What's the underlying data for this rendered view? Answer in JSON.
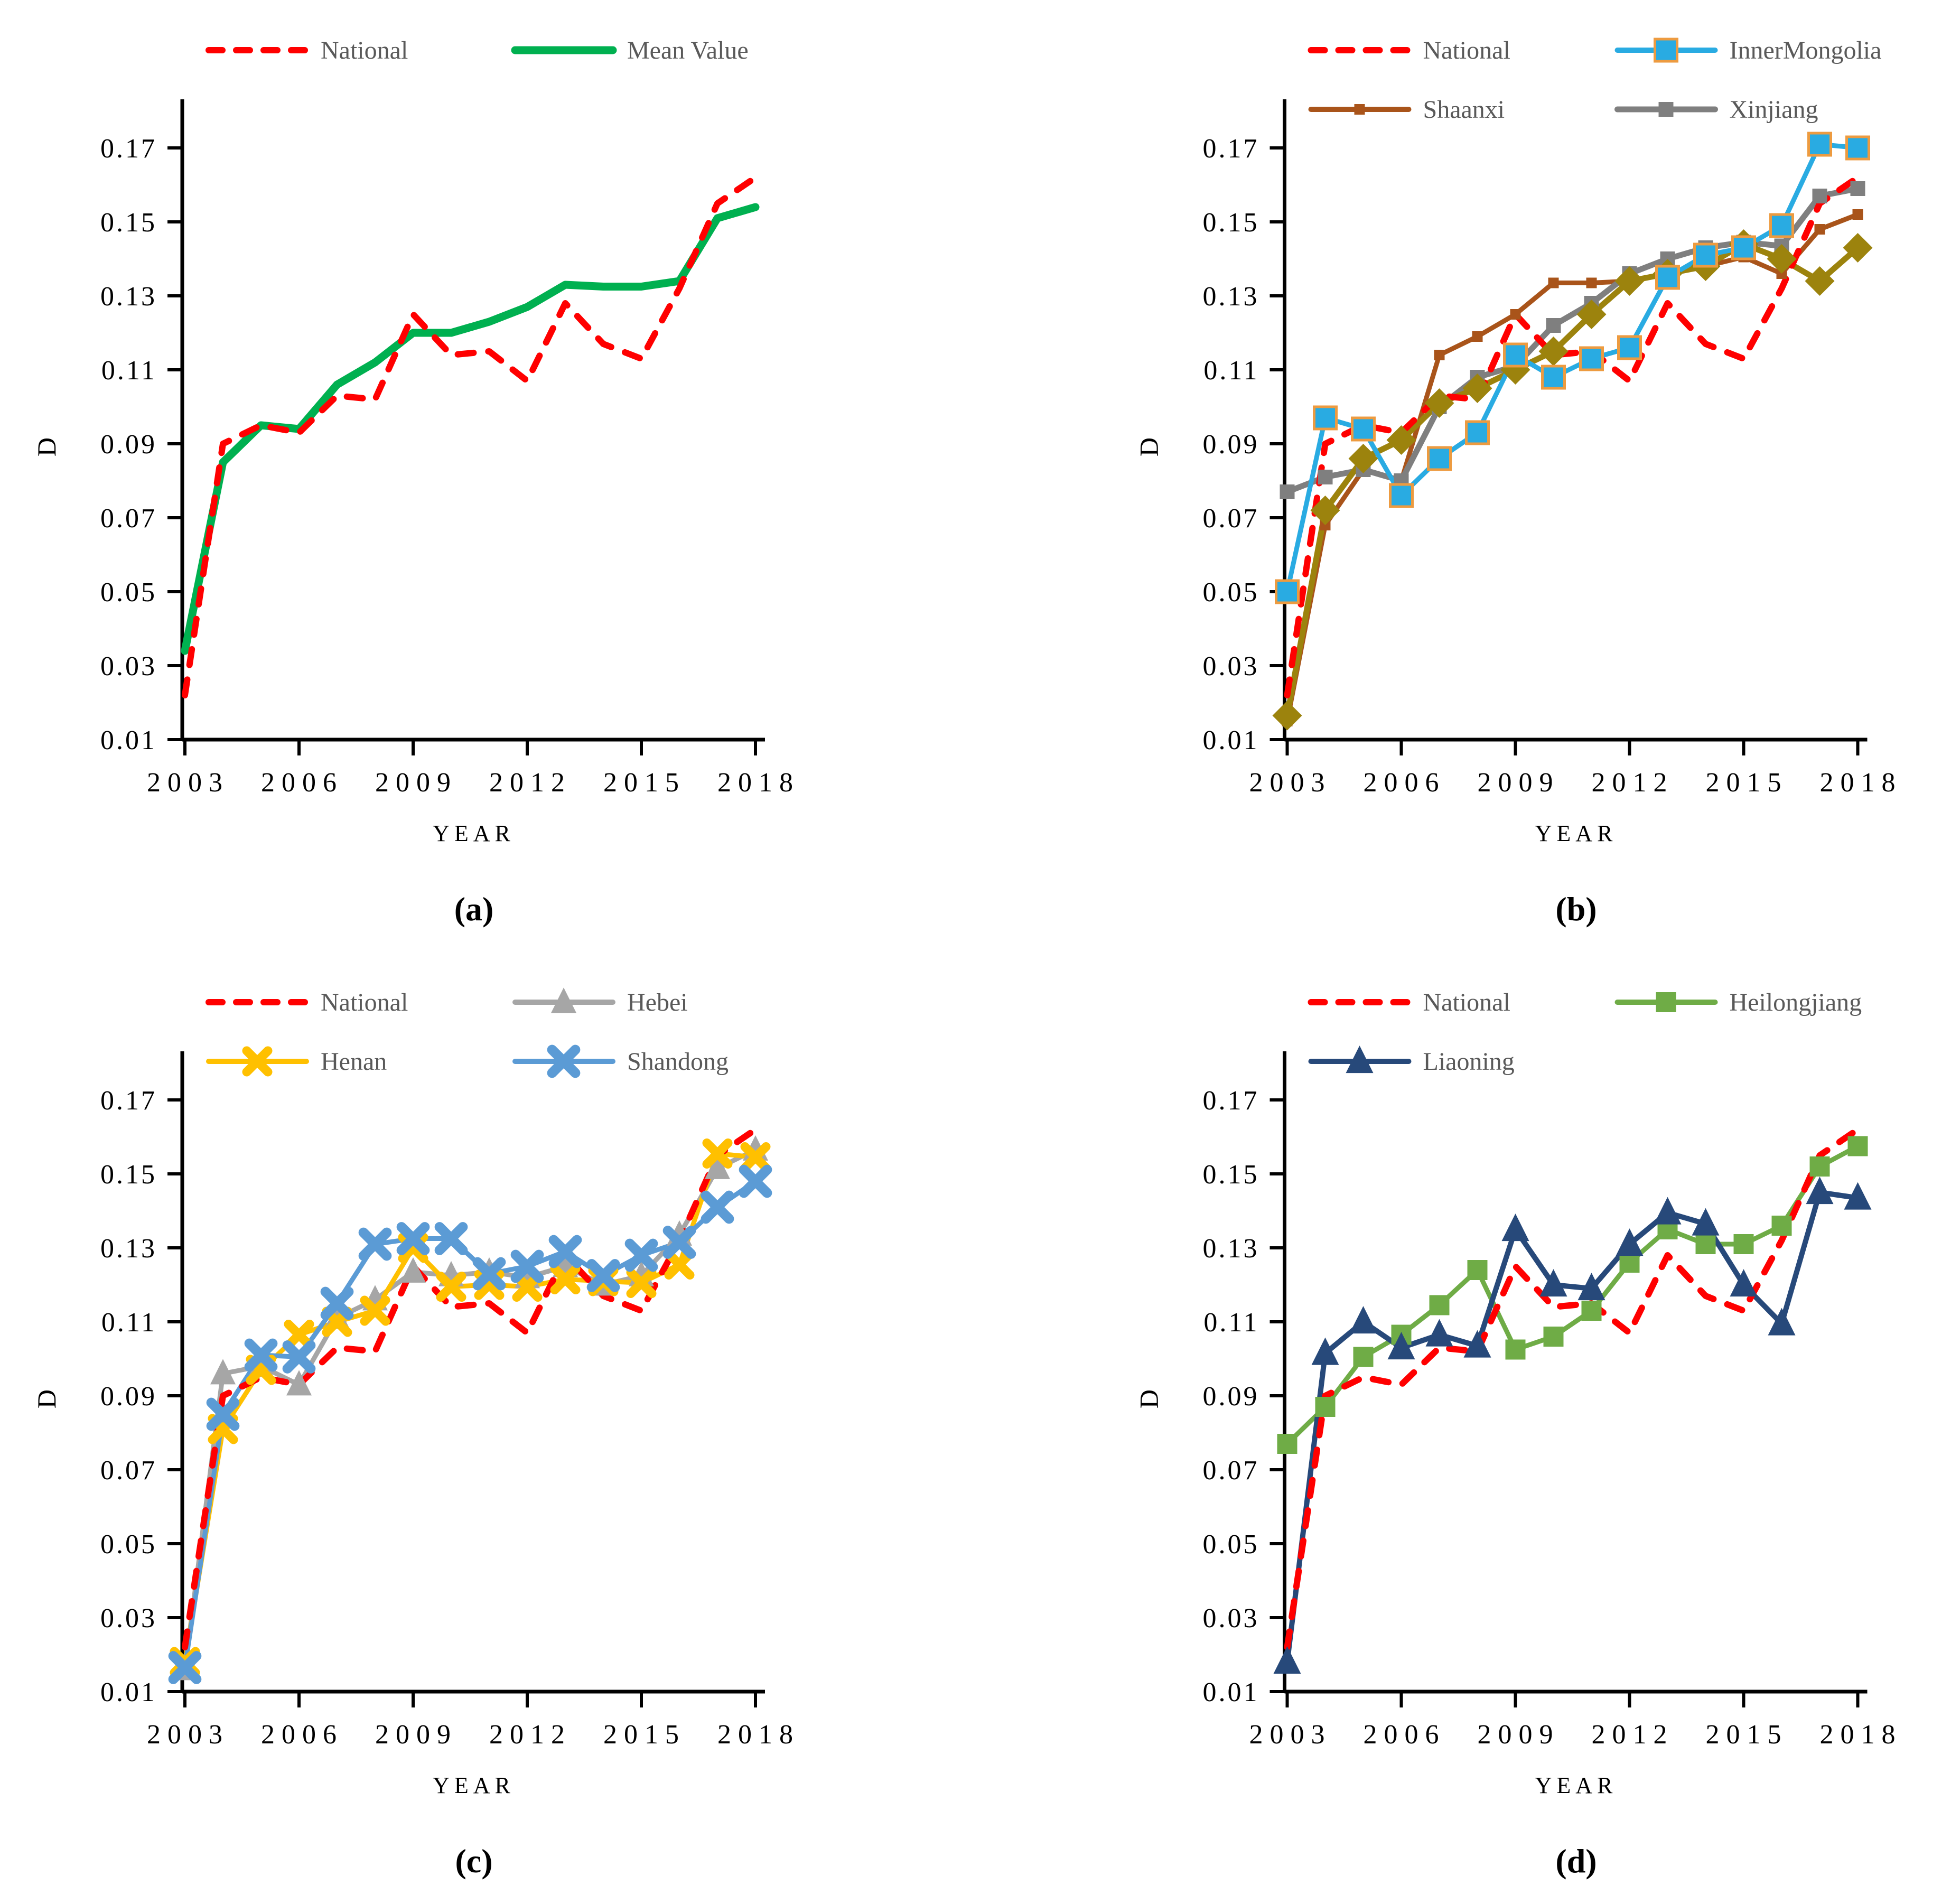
{
  "figure": {
    "background": "#FFFFFF",
    "axis_color": "#000000",
    "legend_text_color": "#595959"
  },
  "chart_data": [
    {
      "id": "a",
      "type": "line",
      "caption": "(a)",
      "xlabel": "YEAR",
      "ylabel": "D",
      "x": [
        2003,
        2004,
        2005,
        2006,
        2007,
        2008,
        2009,
        2010,
        2011,
        2012,
        2013,
        2014,
        2015,
        2016,
        2017,
        2018
      ],
      "x_ticks": [
        2003,
        2006,
        2009,
        2012,
        2015,
        2018
      ],
      "y_ticks": [
        0.01,
        0.03,
        0.05,
        0.07,
        0.09,
        0.11,
        0.13,
        0.15,
        0.17
      ],
      "ylim": [
        0.01,
        0.17
      ],
      "grid": false,
      "legend_position": "top",
      "offset_x": 0,
      "legend": [
        "National",
        "Mean Value"
      ],
      "series": [
        {
          "name": "Mean Value",
          "color": "#00B050",
          "line": "solid",
          "width": 15,
          "marker": "none",
          "values": [
            0.034,
            0.085,
            0.095,
            0.094,
            0.106,
            0.112,
            0.12,
            0.12,
            0.123,
            0.127,
            0.133,
            0.1325,
            0.1325,
            0.134,
            0.151,
            0.154
          ]
        },
        {
          "name": "National",
          "color": "#FF0000",
          "line": "dashed",
          "width": 12,
          "marker": "none",
          "values": [
            0.022,
            0.09,
            0.095,
            0.093,
            0.103,
            0.102,
            0.125,
            0.114,
            0.115,
            0.107,
            0.128,
            0.117,
            0.113,
            0.132,
            0.155,
            0.162
          ]
        }
      ]
    },
    {
      "id": "b",
      "type": "line",
      "caption": "(b)",
      "xlabel": "YEAR",
      "ylabel": "D",
      "x": [
        2003,
        2004,
        2005,
        2006,
        2007,
        2008,
        2009,
        2010,
        2011,
        2012,
        2013,
        2014,
        2015,
        2016,
        2017,
        2018
      ],
      "x_ticks": [
        2003,
        2006,
        2009,
        2012,
        2015,
        2018
      ],
      "y_ticks": [
        0.01,
        0.03,
        0.05,
        0.07,
        0.09,
        0.11,
        0.13,
        0.15,
        0.17
      ],
      "ylim": [
        0.01,
        0.17
      ],
      "grid": false,
      "legend_position": "top",
      "offset_x": 240,
      "legend": [
        "National",
        "InnerMongolia",
        "Shaanxi",
        "Xinjiang"
      ],
      "series": [
        {
          "name": "Shaanxi",
          "color": "#A9541A",
          "line": "solid",
          "width": 9,
          "marker": "square",
          "marker_size": 20,
          "values": [
            0.015,
            0.068,
            0.083,
            0.08,
            0.114,
            0.119,
            0.125,
            0.1335,
            0.1335,
            0.134,
            0.136,
            0.138,
            0.1405,
            0.136,
            0.148,
            0.152
          ]
        },
        {
          "name": "Xinjiang",
          "color": "#7F7F7F",
          "line": "solid",
          "width": 11,
          "marker": "square",
          "marker_size": 28,
          "values": [
            0.077,
            0.081,
            0.083,
            0.08,
            0.1,
            0.108,
            0.111,
            0.122,
            0.128,
            0.136,
            0.14,
            0.143,
            0.1445,
            0.1435,
            0.157,
            0.159
          ]
        },
        {
          "name": "",
          "in_legend": false,
          "color": "#9C830D",
          "line": "solid",
          "width": 11,
          "marker": "diamond",
          "marker_size": 28,
          "values": [
            0.0165,
            0.072,
            0.086,
            0.091,
            0.101,
            0.105,
            0.11,
            0.115,
            0.125,
            0.134,
            0.136,
            0.138,
            0.144,
            0.14,
            0.134,
            0.143
          ]
        },
        {
          "name": "InnerMongolia",
          "color": "#29ABE2",
          "line": "solid",
          "width": 9,
          "marker": "square",
          "marker_size": 42,
          "marker_stroke": "#ED9B40",
          "values": [
            0.05,
            0.097,
            0.094,
            0.076,
            0.086,
            0.093,
            0.114,
            0.108,
            0.113,
            0.116,
            0.135,
            0.141,
            0.143,
            0.149,
            0.171,
            0.17
          ]
        },
        {
          "name": "National",
          "color": "#FF0000",
          "line": "dashed",
          "width": 12,
          "marker": "none",
          "values": [
            0.022,
            0.09,
            0.095,
            0.093,
            0.103,
            0.102,
            0.125,
            0.114,
            0.115,
            0.107,
            0.128,
            0.117,
            0.113,
            0.132,
            0.155,
            0.162
          ]
        }
      ]
    },
    {
      "id": "c",
      "type": "line",
      "caption": "(c)",
      "xlabel": "YEAR",
      "ylabel": "D",
      "x": [
        2003,
        2004,
        2005,
        2006,
        2007,
        2008,
        2009,
        2010,
        2011,
        2012,
        2013,
        2014,
        2015,
        2016,
        2017,
        2018
      ],
      "x_ticks": [
        2003,
        2006,
        2009,
        2012,
        2015,
        2018
      ],
      "y_ticks": [
        0.01,
        0.03,
        0.05,
        0.07,
        0.09,
        0.11,
        0.13,
        0.15,
        0.17
      ],
      "ylim": [
        0.01,
        0.17
      ],
      "grid": false,
      "legend_position": "top",
      "offset_x": 0,
      "legend": [
        "National",
        "Hebei",
        "Henan",
        "Shandong"
      ],
      "series": [
        {
          "name": "Hebei",
          "color": "#A6A6A6",
          "line": "solid",
          "width": 9,
          "marker": "triangle",
          "marker_size": 24,
          "values": [
            0.016,
            0.096,
            0.098,
            0.093,
            0.111,
            0.116,
            0.1235,
            0.1225,
            0.1235,
            0.122,
            0.125,
            0.12,
            0.1225,
            0.1335,
            0.1515,
            0.1565
          ]
        },
        {
          "name": "Henan",
          "color": "#FFC000",
          "line": "solid",
          "width": 9,
          "marker": "x",
          "marker_size": 20,
          "values": [
            0.018,
            0.081,
            0.097,
            0.1065,
            0.11,
            0.113,
            0.13,
            0.1195,
            0.12,
            0.1195,
            0.1215,
            0.121,
            0.1205,
            0.1255,
            0.1555,
            0.1545
          ]
        },
        {
          "name": "Shandong",
          "color": "#5B9BD5",
          "line": "solid",
          "width": 9,
          "marker": "x",
          "marker_size": 22,
          "values": [
            0.0165,
            0.085,
            0.101,
            0.1005,
            0.115,
            0.131,
            0.1325,
            0.1325,
            0.123,
            0.125,
            0.129,
            0.1225,
            0.128,
            0.1315,
            0.141,
            0.148
          ]
        },
        {
          "name": "National",
          "color": "#FF0000",
          "line": "dashed",
          "width": 12,
          "marker": "none",
          "values": [
            0.022,
            0.09,
            0.095,
            0.093,
            0.103,
            0.102,
            0.125,
            0.114,
            0.115,
            0.107,
            0.128,
            0.117,
            0.113,
            0.132,
            0.155,
            0.162
          ]
        }
      ]
    },
    {
      "id": "d",
      "type": "line",
      "caption": "(d)",
      "xlabel": "YEAR",
      "ylabel": "D",
      "x": [
        2003,
        2004,
        2005,
        2006,
        2007,
        2008,
        2009,
        2010,
        2011,
        2012,
        2013,
        2014,
        2015,
        2016,
        2017,
        2018
      ],
      "x_ticks": [
        2003,
        2006,
        2009,
        2012,
        2015,
        2018
      ],
      "y_ticks": [
        0.01,
        0.03,
        0.05,
        0.07,
        0.09,
        0.11,
        0.13,
        0.15,
        0.17
      ],
      "ylim": [
        0.01,
        0.17
      ],
      "grid": false,
      "legend_position": "top",
      "offset_x": 240,
      "legend": [
        "National",
        "Heilongjiang",
        "Liaoning"
      ],
      "series": [
        {
          "name": "Heilongjiang",
          "color": "#6FAC46",
          "line": "solid",
          "width": 9,
          "marker": "square",
          "marker_size": 38,
          "values": [
            0.077,
            0.087,
            0.1005,
            0.1065,
            0.1145,
            0.124,
            0.1025,
            0.106,
            0.113,
            0.126,
            0.135,
            0.131,
            0.131,
            0.136,
            0.152,
            0.1575
          ]
        },
        {
          "name": "Liaoning",
          "color": "#27497A",
          "line": "solid",
          "width": 10,
          "marker": "triangle",
          "marker_size": 26,
          "values": [
            0.018,
            0.1015,
            0.11,
            0.103,
            0.1065,
            0.1035,
            0.135,
            0.12,
            0.119,
            0.131,
            0.1395,
            0.1365,
            0.12,
            0.1095,
            0.145,
            0.1435
          ]
        },
        {
          "name": "National",
          "color": "#FF0000",
          "line": "dashed",
          "width": 12,
          "marker": "none",
          "values": [
            0.022,
            0.09,
            0.095,
            0.093,
            0.103,
            0.102,
            0.125,
            0.114,
            0.115,
            0.107,
            0.128,
            0.117,
            0.113,
            0.132,
            0.155,
            0.162
          ]
        }
      ]
    }
  ]
}
